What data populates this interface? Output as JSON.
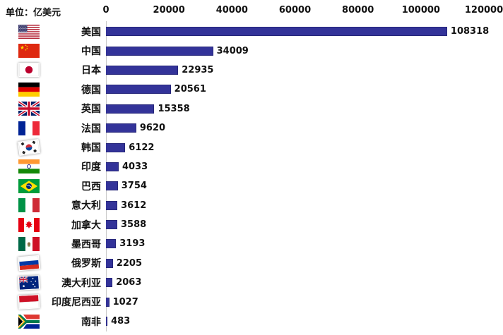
{
  "unit_label": "单位：亿美元",
  "chart_data": {
    "type": "bar",
    "orientation": "horizontal",
    "title": "",
    "xlabel": "",
    "ylabel": "",
    "unit": "亿美元",
    "xlim": [
      0,
      120000
    ],
    "x_ticks": [
      "0",
      "20000",
      "40000",
      "60000",
      "80000",
      "100000",
      "120000"
    ],
    "x_tick_values": [
      0,
      20000,
      40000,
      60000,
      80000,
      100000,
      120000
    ],
    "grid": false,
    "legend": "none",
    "bar_color": "#333399",
    "axis_line_color": "#c9c9c9",
    "categories": [
      "美国",
      "中国",
      "日本",
      "德国",
      "英国",
      "法国",
      "韩国",
      "印度",
      "巴西",
      "意大利",
      "加拿大",
      "墨西哥",
      "俄罗斯",
      "澳大利亚",
      "印度尼西亚",
      "南非"
    ],
    "values": [
      108318,
      34009,
      22935,
      20561,
      15358,
      9620,
      6122,
      4033,
      3754,
      3612,
      3588,
      3193,
      2205,
      2063,
      1027,
      483
    ],
    "rows": [
      {
        "country": "美国",
        "flag": "us",
        "value": 108318
      },
      {
        "country": "中国",
        "flag": "cn",
        "value": 34009
      },
      {
        "country": "日本",
        "flag": "jp",
        "value": 22935
      },
      {
        "country": "德国",
        "flag": "de",
        "value": 20561
      },
      {
        "country": "英国",
        "flag": "gb",
        "value": 15358
      },
      {
        "country": "法国",
        "flag": "fr",
        "value": 9620
      },
      {
        "country": "韩国",
        "flag": "kr",
        "value": 6122
      },
      {
        "country": "印度",
        "flag": "in",
        "value": 4033
      },
      {
        "country": "巴西",
        "flag": "br",
        "value": 3754
      },
      {
        "country": "意大利",
        "flag": "it",
        "value": 3612
      },
      {
        "country": "加拿大",
        "flag": "ca",
        "value": 3588
      },
      {
        "country": "墨西哥",
        "flag": "mx",
        "value": 3193
      },
      {
        "country": "俄罗斯",
        "flag": "ru",
        "value": 2205
      },
      {
        "country": "澳大利亚",
        "flag": "au",
        "value": 2063
      },
      {
        "country": "印度尼西亚",
        "flag": "id",
        "value": 1027
      },
      {
        "country": "南非",
        "flag": "za",
        "value": 483
      }
    ]
  }
}
